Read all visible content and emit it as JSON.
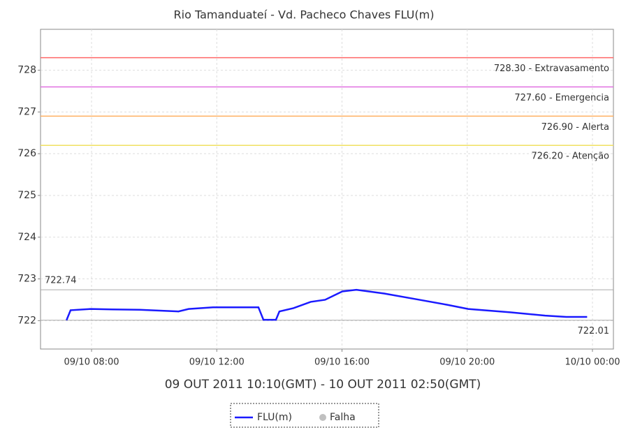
{
  "chart_data": {
    "type": "line",
    "title": "Rio Tamanduateí - Vd. Pacheco Chaves FLU(m)",
    "x_label": "09 OUT 2011 10:10(GMT) - 10 OUT 2011 02:50(GMT)",
    "x": [
      7.2,
      7.33,
      7.98,
      8.65,
      9.54,
      10.77,
      11.1,
      11.88,
      13.33,
      13.49,
      13.89,
      14.0,
      14.45,
      15.0,
      15.46,
      16.01,
      16.46,
      17.35,
      18.47,
      19.36,
      20.03,
      21.37,
      22.49,
      23.16,
      23.83
    ],
    "series": [
      {
        "name": "FLU(m)",
        "color": "#1a1aff",
        "values": [
          722.01,
          722.25,
          722.28,
          722.27,
          722.26,
          722.22,
          722.28,
          722.32,
          722.32,
          722.02,
          722.02,
          722.22,
          722.3,
          722.45,
          722.5,
          722.7,
          722.74,
          722.65,
          722.5,
          722.38,
          722.28,
          722.2,
          722.12,
          722.09,
          722.09
        ]
      }
    ],
    "legend_extra": {
      "name": "Falha",
      "color": "#c0c0c0"
    },
    "xlim": [
      6.37,
      24.67
    ],
    "xticks": [
      {
        "value": 8,
        "label": "09/10 08:00"
      },
      {
        "value": 12,
        "label": "09/10 12:00"
      },
      {
        "value": 16,
        "label": "09/10 16:00"
      },
      {
        "value": 20,
        "label": "09/10 20:00"
      },
      {
        "value": 24,
        "label": "10/10 00:00"
      }
    ],
    "ylim": [
      721.32,
      728.98
    ],
    "yticks": [
      722,
      723,
      724,
      725,
      726,
      727,
      728
    ],
    "grid": true,
    "thresholds": [
      {
        "value": 728.3,
        "label": "728.30 - Extravasamento",
        "color": "#ff6666"
      },
      {
        "value": 727.6,
        "label": "727.60 - Emergencia",
        "color": "#e070e0"
      },
      {
        "value": 726.9,
        "label": "726.90 - Alerta",
        "color": "#ffb060"
      },
      {
        "value": 726.2,
        "label": "726.20 - Atenção",
        "color": "#f0e060"
      }
    ],
    "max_line": {
      "value": 722.74,
      "label": "722.74"
    },
    "min_line": {
      "value": 722.01,
      "label": "722.01"
    }
  }
}
